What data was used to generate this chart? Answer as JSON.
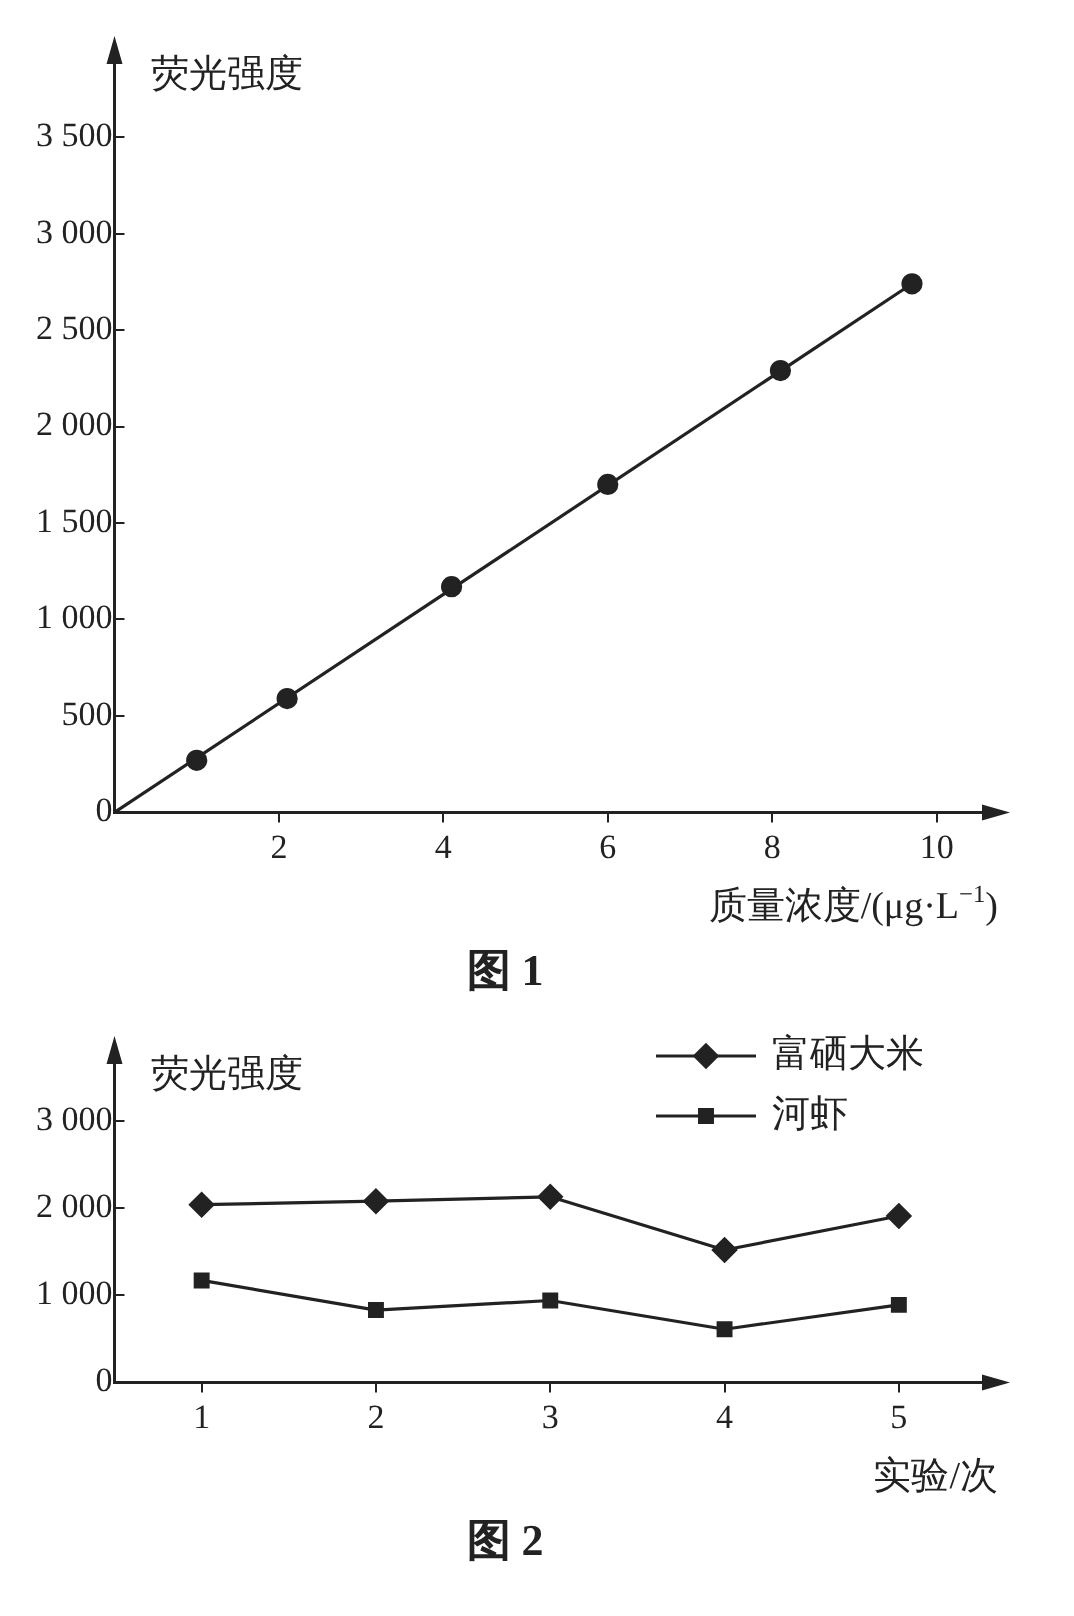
{
  "chart_data": [
    {
      "type": "scatter",
      "title": "图 1",
      "xlabel": "质量浓度/(μg·L$^{−1}$)",
      "ylabel": "荧光强度",
      "grid": false,
      "legend": false,
      "series": [
        {
          "type": "scatter",
          "color": "#222222",
          "marker": "circle",
          "x": [
            1,
            2.1,
            4.1,
            6,
            8.1,
            9.7
          ],
          "values": [
            270,
            590,
            1170,
            1700,
            2290,
            2740
          ]
        },
        {
          "type": "line",
          "color": "#222222",
          "marker": "none",
          "x": [
            0,
            9.7
          ],
          "values": [
            0,
            2740
          ]
        }
      ],
      "xlim": [
        0,
        10.6
      ],
      "xticks": [
        2,
        4,
        6,
        8,
        10
      ],
      "ylim": [
        0,
        3900
      ],
      "yticks": [
        0,
        {
          "value": 500,
          "label": "500"
        },
        {
          "value": 1000,
          "label": "1 000"
        },
        {
          "value": 1500,
          "label": "1 500"
        },
        {
          "value": 2000,
          "label": "2 000"
        },
        {
          "value": 2500,
          "label": "2 500"
        },
        {
          "value": 3000,
          "label": "3 000"
        },
        {
          "value": 3500,
          "label": "3 500"
        }
      ]
    },
    {
      "type": "line",
      "title": "图 2",
      "xlabel": "实验/次",
      "ylabel": "荧光强度",
      "grid": false,
      "legend": "top right",
      "categories": [
        "1",
        "2",
        "3",
        "4",
        "5"
      ],
      "series": [
        {
          "name": "富硒大米",
          "color": "#222222",
          "marker": "diamond",
          "values": [
            2040,
            2080,
            2130,
            1520,
            1910
          ]
        },
        {
          "name": "河虾",
          "color": "#222222",
          "marker": "square",
          "values": [
            1170,
            830,
            940,
            610,
            890
          ]
        }
      ],
      "ylim": [
        0,
        3700
      ],
      "yticks": [
        0,
        {
          "value": 1000,
          "label": "1 000"
        },
        {
          "value": 2000,
          "label": "2 000"
        },
        {
          "value": 3000,
          "label": "3 000"
        }
      ]
    }
  ]
}
